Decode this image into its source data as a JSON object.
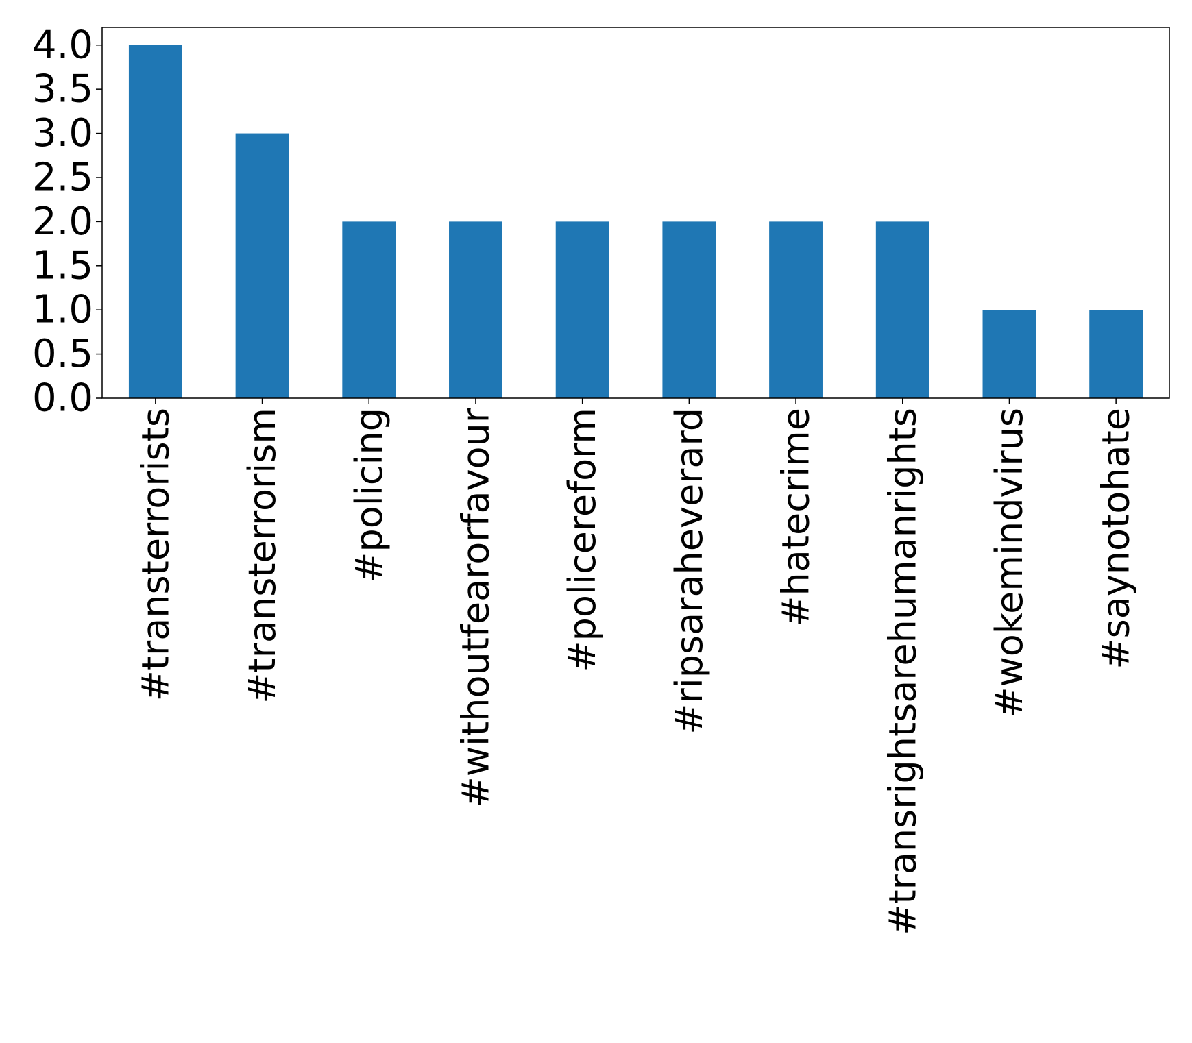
{
  "chart_data": {
    "type": "bar",
    "title": "",
    "xlabel": "",
    "ylabel": "",
    "categories": [
      "#transterrorists",
      "#transterrorism",
      "#policing",
      "#withoutfearorfavour",
      "#policereform",
      "#ripsaraheverard",
      "#hatecrime",
      "#transrightsarehumanrights",
      "#wokemindvirus",
      "#saynotohate"
    ],
    "values": [
      4,
      3,
      2,
      2,
      2,
      2,
      2,
      2,
      1,
      1
    ],
    "ylim": [
      0,
      4.2
    ],
    "yticks": [
      0.0,
      0.5,
      1.0,
      1.5,
      2.0,
      2.5,
      3.0,
      3.5,
      4.0
    ],
    "ytick_labels": [
      "0.0",
      "0.5",
      "1.0",
      "1.5",
      "2.0",
      "2.5",
      "3.0",
      "3.5",
      "4.0"
    ],
    "grid": false,
    "legend": "none",
    "bar_color": "#1f77b4"
  }
}
